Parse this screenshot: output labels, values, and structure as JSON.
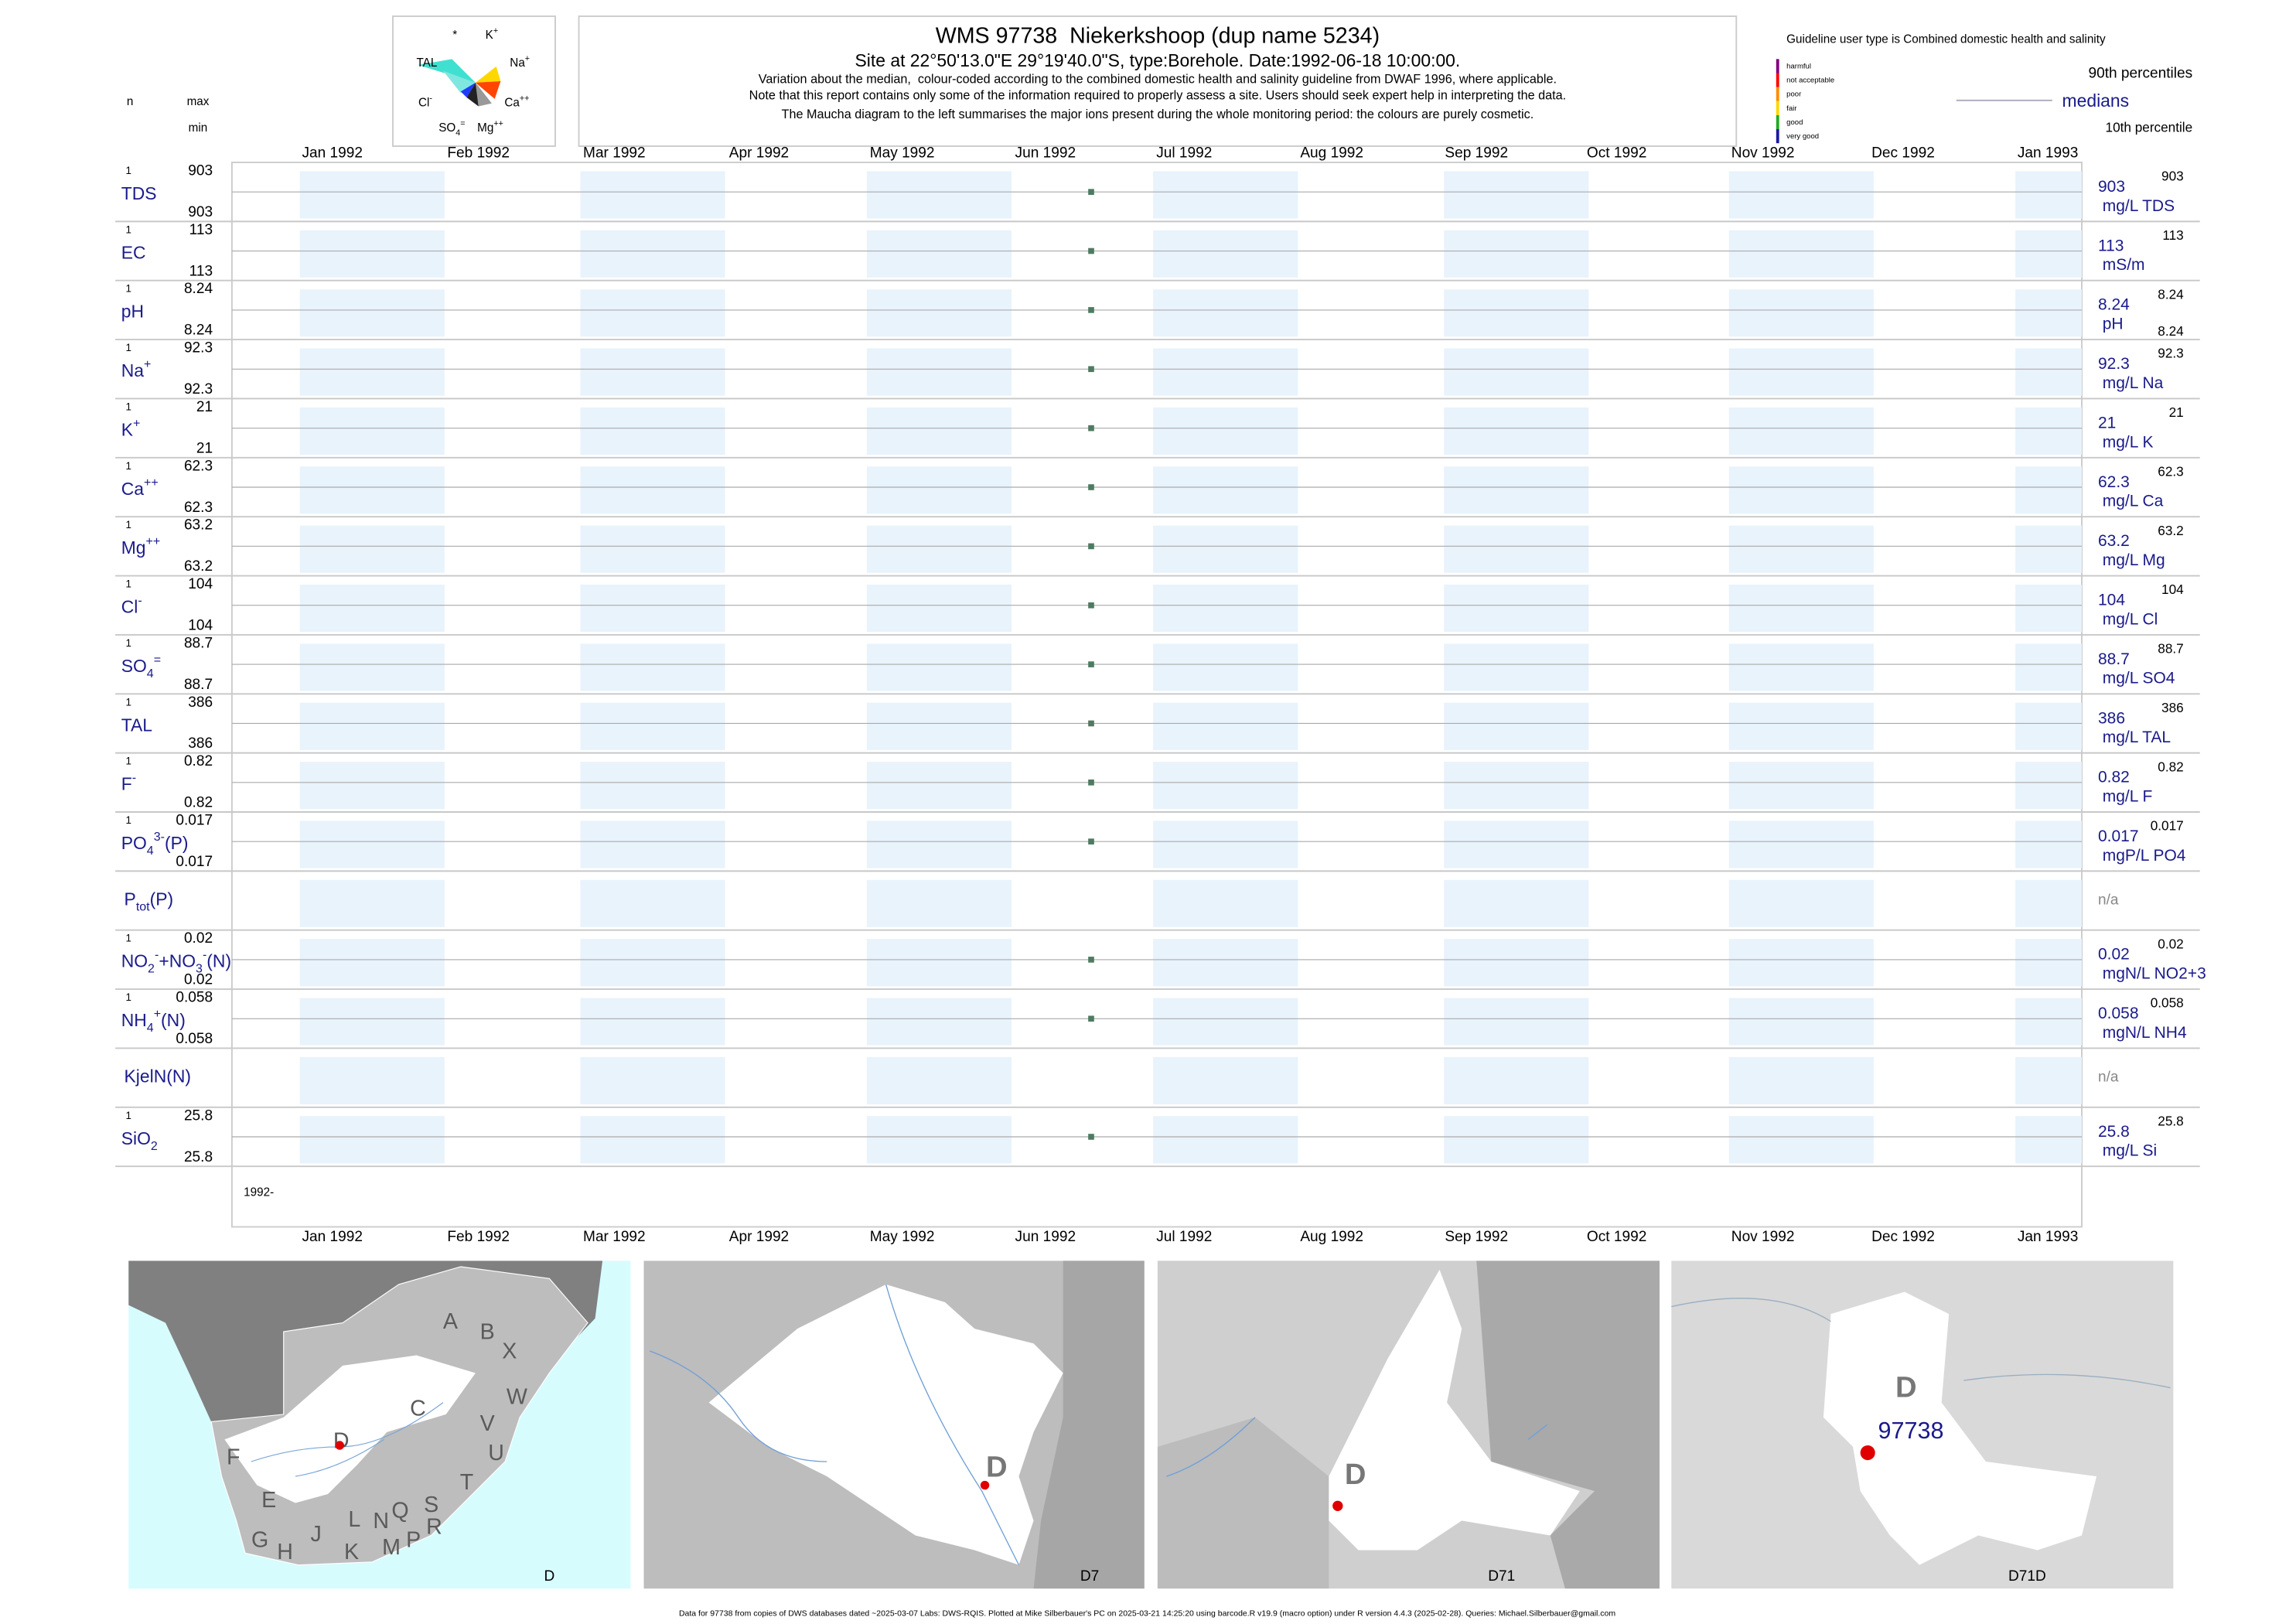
{
  "header": {
    "title": "WMS 97738  Niekerkshoop (dup name 5234)",
    "subtitle": "Site at 22°50'13.0\"E 29°19'40.0\"S, type:Borehole. Date:1992-06-18 10:00:00.",
    "notes": [
      "Variation about the median,  colour-coded according to the combined domestic health and salinity guideline from DWAF 1996, where applicable.",
      "Note that this report contains only some of the information required to properly assess a site. Users should seek expert help in interpreting the data.",
      "The Maucha diagram to the left summarises the major ions present during the whole monitoring period: the colours are purely cosmetic."
    ]
  },
  "maucha": {
    "labels": [
      [
        "*"
      ],
      [
        "K",
        {
          "sup": "+"
        }
      ],
      [
        "TAL"
      ],
      [
        "Na",
        {
          "sup": "+"
        }
      ],
      [
        "Cl",
        {
          "sup": "-"
        }
      ],
      [
        "Ca",
        {
          "sup": "++"
        }
      ],
      [
        "SO",
        {
          "sub": "4"
        },
        {
          "sup": "="
        }
      ],
      [
        "Mg",
        {
          "sup": "++"
        }
      ]
    ]
  },
  "legend": {
    "guideline": "Guideline user type is Combined domestic health and salinity",
    "levels": [
      "harmful",
      "not acceptable",
      "poor",
      "fair",
      "good",
      "very good"
    ],
    "p90": "90th percentiles",
    "median": "medians",
    "p10": "10th percentile"
  },
  "columns": {
    "n": "n",
    "max": "max",
    "min": "min"
  },
  "months": [
    "Jan 1992",
    "Feb 1992",
    "Mar 1992",
    "Apr 1992",
    "May 1992",
    "Jun 1992",
    "Jul 1992",
    "Aug 1992",
    "Sep 1992",
    "Oct 1992",
    "Nov 1992",
    "Dec 1992",
    "Jan 1993"
  ],
  "point_color": "#4f7a62",
  "rows": [
    {
      "label": [
        "TDS"
      ],
      "n": 1,
      "max": 903,
      "min": 903,
      "median": 903,
      "p90": 903,
      "unit": "mg/L TDS"
    },
    {
      "label": [
        "EC"
      ],
      "n": 1,
      "max": 113,
      "min": 113,
      "median": 113,
      "p90": 113,
      "unit": "mS/m"
    },
    {
      "label": [
        "pH"
      ],
      "n": 1,
      "max": 8.24,
      "min": 8.24,
      "median": 8.24,
      "p90": 8.24,
      "p10": 8.24,
      "unit": "pH"
    },
    {
      "label": [
        "Na",
        {
          "sup": "+"
        }
      ],
      "n": 1,
      "max": 92.3,
      "min": 92.3,
      "median": 92.3,
      "p90": 92.3,
      "unit": "mg/L Na"
    },
    {
      "label": [
        "K",
        {
          "sup": "+"
        }
      ],
      "n": 1,
      "max": 21,
      "min": 21,
      "median": 21,
      "p90": 21,
      "unit": "mg/L K"
    },
    {
      "label": [
        "Ca",
        {
          "sup": "++"
        }
      ],
      "n": 1,
      "max": 62.3,
      "min": 62.3,
      "median": 62.3,
      "p90": 62.3,
      "unit": "mg/L Ca"
    },
    {
      "label": [
        "Mg",
        {
          "sup": "++"
        }
      ],
      "n": 1,
      "max": 63.2,
      "min": 63.2,
      "median": 63.2,
      "p90": 63.2,
      "unit": "mg/L Mg"
    },
    {
      "label": [
        "Cl",
        {
          "sup": "-"
        }
      ],
      "n": 1,
      "max": 104,
      "min": 104,
      "median": 104,
      "p90": 104,
      "unit": "mg/L Cl"
    },
    {
      "label": [
        "SO",
        {
          "sub": "4"
        },
        {
          "sup": "="
        }
      ],
      "n": 1,
      "max": 88.7,
      "min": 88.7,
      "median": 88.7,
      "p90": 88.7,
      "unit": "mg/L SO4"
    },
    {
      "label": [
        "TAL"
      ],
      "n": 1,
      "max": 386,
      "min": 386,
      "median": 386,
      "p90": 386,
      "unit": "mg/L TAL"
    },
    {
      "label": [
        "F",
        {
          "sup": "-"
        }
      ],
      "n": 1,
      "max": 0.82,
      "min": 0.82,
      "median": 0.82,
      "p90": 0.82,
      "unit": "mg/L F"
    },
    {
      "label": [
        "PO",
        {
          "sub": "4"
        },
        {
          "sup": "3-"
        },
        "(P)"
      ],
      "n": 1,
      "max": 0.017,
      "min": 0.017,
      "median": 0.017,
      "p90": 0.017,
      "unit": "mgP/L PO4"
    },
    {
      "label": [
        "P",
        {
          "sub": "tot"
        },
        "(P)"
      ],
      "status": "n/a"
    },
    {
      "label": [
        "NO",
        {
          "sub": "2"
        },
        {
          "sup": "-"
        },
        "+NO",
        {
          "sub": "3"
        },
        {
          "sup": "-"
        },
        "(N)"
      ],
      "n": 1,
      "max": 0.02,
      "min": 0.02,
      "median": 0.02,
      "p90": 0.02,
      "unit": "mgN/L NO2+3"
    },
    {
      "label": [
        "NH",
        {
          "sub": "4"
        },
        {
          "sup": "+"
        },
        "(N)"
      ],
      "n": 1,
      "max": 0.058,
      "min": 0.058,
      "median": 0.058,
      "p90": 0.058,
      "unit": "mgN/L NH4"
    },
    {
      "label": [
        "KjelN(N)"
      ],
      "status": "n/a"
    },
    {
      "label": [
        "SiO",
        {
          "sub": "2"
        }
      ],
      "n": 1,
      "max": 25.8,
      "min": 25.8,
      "median": 25.8,
      "p90": 25.8,
      "unit": "mg/L Si"
    }
  ],
  "time_label": "1992-",
  "maps": {
    "regions": [
      "A",
      "B",
      "X",
      "W",
      "C",
      "V",
      "U",
      "T",
      "S",
      "R",
      "Q",
      "P",
      "M",
      "N",
      "K",
      "L",
      "J",
      "H",
      "G",
      "E",
      "F",
      "D"
    ],
    "panels": [
      "D",
      "D7",
      "D71",
      "D71D"
    ],
    "catchment": "D",
    "site": "97738"
  },
  "footer": "Data for 97738 from copies of DWS databases dated ~2025-03-07 Labs: DWS-RQIS. Plotted at Mike Silberbauer's PC on 2025-03-21 14:25:20 using barcode.R v19.9 (macro option) under R version 4.4.3 (2025-02-28). Queries: Michael.Silberbauer@gmail.com"
}
